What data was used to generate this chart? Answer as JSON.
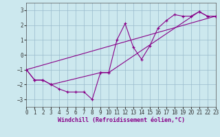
{
  "xlabel": "Windchill (Refroidissement éolien,°C)",
  "bg_color": "#cce8ee",
  "grid_color": "#99bbcc",
  "line_color": "#880088",
  "xlim": [
    0,
    23
  ],
  "ylim": [
    -3.5,
    3.5
  ],
  "yticks": [
    -3,
    -2,
    -1,
    0,
    1,
    2,
    3
  ],
  "xticks": [
    0,
    1,
    2,
    3,
    4,
    5,
    6,
    7,
    8,
    9,
    10,
    11,
    12,
    13,
    14,
    15,
    16,
    17,
    18,
    19,
    20,
    21,
    22,
    23
  ],
  "line1_x": [
    0,
    1,
    2,
    3,
    4,
    5,
    6,
    7,
    8,
    9,
    10,
    11,
    12,
    13,
    14,
    15,
    16,
    17,
    18,
    19,
    20,
    21,
    22,
    23
  ],
  "line1_y": [
    -1.0,
    -1.7,
    -1.7,
    -2.0,
    -2.3,
    -2.5,
    -2.5,
    -2.5,
    -3.0,
    -1.2,
    -1.2,
    1.0,
    2.1,
    0.5,
    -0.3,
    0.6,
    1.8,
    2.3,
    2.7,
    2.6,
    2.6,
    2.9,
    2.6,
    2.6
  ],
  "line2_x": [
    0,
    1,
    2,
    3,
    9,
    10,
    21,
    22,
    23
  ],
  "line2_y": [
    -1.0,
    -1.7,
    -1.7,
    -2.0,
    -1.2,
    -1.2,
    2.9,
    2.6,
    2.6
  ],
  "line3_x": [
    0,
    23
  ],
  "line3_y": [
    -1.0,
    2.6
  ],
  "marker_size": 3.5,
  "lw": 0.8,
  "xlabel_fontsize": 6.0,
  "tick_fontsize": 5.5
}
